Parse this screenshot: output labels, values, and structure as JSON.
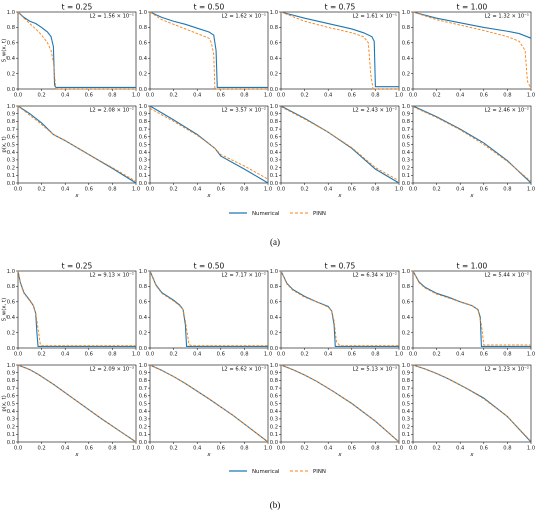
{
  "panel_labels": [
    "(a)",
    "(b)"
  ],
  "legend": {
    "numerical": "Numerical",
    "pinn": "PINN"
  },
  "colors": {
    "numerical": "#1f77b4",
    "pinn": "#ff7f0e"
  },
  "row_ylabels": {
    "saturation": "S_w(x, t)",
    "pressure": "p(x, t)"
  },
  "xlabel": "x",
  "chart_data": [
    {
      "panel": "(a)",
      "row": "saturation",
      "type": "line",
      "times": [
        "t = 0.25",
        "t = 0.50",
        "t = 0.75",
        "t = 1.00"
      ],
      "l2": [
        "L2 = 1.56 × 10⁻¹",
        "L2 = 1.62 × 10⁻¹",
        "L2 = 1.61 × 10⁻¹",
        "L2 = 1.32 × 10⁻¹"
      ],
      "xlim": [
        0,
        1
      ],
      "ylim": [
        0,
        1
      ],
      "xticks": [
        "0.0",
        "0.2",
        "0.4",
        "0.6",
        "0.8",
        "1.0"
      ],
      "yticks": [
        "0.0",
        "0.2",
        "0.4",
        "0.6",
        "0.8",
        "1.0"
      ],
      "series": [
        [
          {
            "name": "Numerical",
            "x": [
              0,
              0.05,
              0.1,
              0.15,
              0.2,
              0.25,
              0.28,
              0.3,
              0.31,
              0.32,
              1.0
            ],
            "y": [
              1.0,
              0.93,
              0.88,
              0.85,
              0.8,
              0.74,
              0.68,
              0.55,
              0.05,
              0.02,
              0.02
            ]
          },
          {
            "name": "PINN",
            "x": [
              0,
              0.05,
              0.1,
              0.15,
              0.2,
              0.25,
              0.28,
              0.3,
              0.32,
              1.0
            ],
            "y": [
              1.0,
              0.92,
              0.85,
              0.78,
              0.7,
              0.6,
              0.5,
              0.35,
              0.0,
              0.0
            ]
          }
        ],
        [
          {
            "name": "Numerical",
            "x": [
              0,
              0.1,
              0.2,
              0.3,
              0.4,
              0.5,
              0.54,
              0.56,
              0.57,
              1.0
            ],
            "y": [
              1.0,
              0.93,
              0.88,
              0.84,
              0.79,
              0.74,
              0.7,
              0.5,
              0.02,
              0.02
            ]
          },
          {
            "name": "PINN",
            "x": [
              0,
              0.1,
              0.2,
              0.3,
              0.4,
              0.5,
              0.52,
              0.54,
              0.55,
              1.0
            ],
            "y": [
              1.0,
              0.9,
              0.84,
              0.78,
              0.72,
              0.66,
              0.6,
              0.45,
              0.0,
              0.0
            ]
          }
        ],
        [
          {
            "name": "Numerical",
            "x": [
              0,
              0.2,
              0.4,
              0.6,
              0.7,
              0.77,
              0.79,
              0.8,
              1.0
            ],
            "y": [
              1.0,
              0.92,
              0.85,
              0.78,
              0.73,
              0.68,
              0.62,
              0.03,
              0.03
            ]
          },
          {
            "name": "PINN",
            "x": [
              0,
              0.2,
              0.4,
              0.6,
              0.7,
              0.74,
              0.76,
              0.78,
              1.0
            ],
            "y": [
              1.0,
              0.88,
              0.8,
              0.73,
              0.68,
              0.6,
              0.2,
              0.0,
              0.0
            ]
          }
        ],
        [
          {
            "name": "Numerical",
            "x": [
              0,
              0.2,
              0.4,
              0.6,
              0.8,
              0.9,
              1.0
            ],
            "y": [
              1.0,
              0.92,
              0.86,
              0.8,
              0.75,
              0.72,
              0.66
            ]
          },
          {
            "name": "PINN",
            "x": [
              0,
              0.2,
              0.4,
              0.6,
              0.8,
              0.9,
              0.95,
              0.97,
              1.0
            ],
            "y": [
              1.0,
              0.9,
              0.83,
              0.76,
              0.68,
              0.62,
              0.5,
              0.1,
              0.0
            ]
          }
        ]
      ]
    },
    {
      "panel": "(a)",
      "row": "pressure",
      "type": "line",
      "l2": [
        "L2 = 2.08 × 10⁻²",
        "L2 = 3.57 × 10⁻²",
        "L2 = 2.43 × 10⁻²",
        "L2 = 2.46 × 10⁻²"
      ],
      "xlim": [
        0,
        1
      ],
      "ylim": [
        0,
        1
      ],
      "xticks": [
        "0.0",
        "0.2",
        "0.4",
        "0.6",
        "0.8",
        "1.0"
      ],
      "yticks": [
        "0.0",
        "0.1",
        "0.2",
        "0.3",
        "0.4",
        "0.5",
        "0.6",
        "0.7",
        "0.8",
        "0.9",
        "1.0"
      ],
      "series": [
        [
          {
            "name": "Numerical",
            "x": [
              0,
              0.1,
              0.2,
              0.3,
              0.4,
              0.6,
              0.8,
              1.0
            ],
            "y": [
              1.0,
              0.9,
              0.78,
              0.63,
              0.55,
              0.37,
              0.19,
              0.0
            ]
          },
          {
            "name": "PINN",
            "x": [
              0,
              0.1,
              0.2,
              0.3,
              0.4,
              0.6,
              0.8,
              1.0
            ],
            "y": [
              1.0,
              0.88,
              0.76,
              0.63,
              0.55,
              0.37,
              0.2,
              0.02
            ]
          }
        ],
        [
          {
            "name": "Numerical",
            "x": [
              0,
              0.2,
              0.4,
              0.55,
              0.6,
              0.8,
              1.0
            ],
            "y": [
              1.0,
              0.82,
              0.63,
              0.45,
              0.35,
              0.18,
              0.0
            ]
          },
          {
            "name": "PINN",
            "x": [
              0,
              0.2,
              0.4,
              0.55,
              0.6,
              0.8,
              1.0
            ],
            "y": [
              0.97,
              0.8,
              0.62,
              0.45,
              0.37,
              0.22,
              0.05
            ]
          }
        ],
        [
          {
            "name": "Numerical",
            "x": [
              0,
              0.2,
              0.4,
              0.6,
              0.8,
              1.0
            ],
            "y": [
              1.0,
              0.84,
              0.66,
              0.45,
              0.18,
              0.0
            ]
          },
          {
            "name": "PINN",
            "x": [
              0,
              0.2,
              0.4,
              0.6,
              0.8,
              1.0
            ],
            "y": [
              0.99,
              0.83,
              0.66,
              0.46,
              0.2,
              0.03
            ]
          }
        ],
        [
          {
            "name": "Numerical",
            "x": [
              0,
              0.2,
              0.4,
              0.6,
              0.8,
              1.0
            ],
            "y": [
              1.0,
              0.86,
              0.7,
              0.52,
              0.29,
              0.0
            ]
          },
          {
            "name": "PINN",
            "x": [
              0,
              0.2,
              0.4,
              0.6,
              0.8,
              1.0
            ],
            "y": [
              0.99,
              0.85,
              0.69,
              0.5,
              0.28,
              0.02
            ]
          }
        ]
      ]
    },
    {
      "panel": "(b)",
      "row": "saturation",
      "type": "line",
      "times": [
        "t = 0.25",
        "t = 0.50",
        "t = 0.75",
        "t = 1.00"
      ],
      "l2": [
        "L2 = 9.13 × 10⁻²",
        "L2 = 7.17 × 10⁻²",
        "L2 = 6.34 × 10⁻²",
        "L2 = 5.44 × 10⁻²"
      ],
      "xlim": [
        0,
        1
      ],
      "ylim": [
        0,
        1
      ],
      "xticks": [
        "0.0",
        "0.2",
        "0.4",
        "0.6",
        "0.8",
        "1.0"
      ],
      "yticks": [
        "0.0",
        "0.2",
        "0.4",
        "0.6",
        "0.8",
        "1.0"
      ],
      "series": [
        [
          {
            "name": "Numerical",
            "x": [
              0,
              0.02,
              0.05,
              0.1,
              0.13,
              0.15,
              0.16,
              0.17,
              1.0
            ],
            "y": [
              1.0,
              0.85,
              0.72,
              0.62,
              0.55,
              0.45,
              0.2,
              0.02,
              0.02
            ]
          },
          {
            "name": "PINN",
            "x": [
              0,
              0.02,
              0.05,
              0.1,
              0.13,
              0.15,
              0.17,
              0.19,
              0.2,
              1.0
            ],
            "y": [
              1.0,
              0.84,
              0.71,
              0.61,
              0.55,
              0.46,
              0.25,
              0.04,
              0.03,
              0.03
            ]
          }
        ],
        [
          {
            "name": "Numerical",
            "x": [
              0,
              0.05,
              0.1,
              0.2,
              0.25,
              0.28,
              0.3,
              0.31,
              1.0
            ],
            "y": [
              1.0,
              0.82,
              0.72,
              0.62,
              0.56,
              0.5,
              0.3,
              0.02,
              0.02
            ]
          },
          {
            "name": "PINN",
            "x": [
              0,
              0.05,
              0.1,
              0.2,
              0.25,
              0.28,
              0.3,
              0.33,
              0.35,
              1.0
            ],
            "y": [
              1.0,
              0.81,
              0.71,
              0.61,
              0.55,
              0.5,
              0.35,
              0.05,
              0.03,
              0.03
            ]
          }
        ],
        [
          {
            "name": "Numerical",
            "x": [
              0,
              0.05,
              0.1,
              0.2,
              0.3,
              0.4,
              0.43,
              0.45,
              0.46,
              1.0
            ],
            "y": [
              1.0,
              0.84,
              0.76,
              0.67,
              0.6,
              0.54,
              0.48,
              0.3,
              0.02,
              0.02
            ]
          },
          {
            "name": "PINN",
            "x": [
              0,
              0.05,
              0.1,
              0.2,
              0.3,
              0.4,
              0.43,
              0.45,
              0.47,
              0.5,
              1.0
            ],
            "y": [
              1.0,
              0.83,
              0.75,
              0.66,
              0.6,
              0.53,
              0.48,
              0.35,
              0.08,
              0.03,
              0.03
            ]
          }
        ],
        [
          {
            "name": "Numerical",
            "x": [
              0,
              0.05,
              0.1,
              0.2,
              0.3,
              0.4,
              0.5,
              0.55,
              0.57,
              0.58,
              1.0
            ],
            "y": [
              1.0,
              0.86,
              0.79,
              0.71,
              0.66,
              0.6,
              0.55,
              0.5,
              0.4,
              0.02,
              0.02
            ]
          },
          {
            "name": "PINN",
            "x": [
              0,
              0.05,
              0.1,
              0.2,
              0.3,
              0.4,
              0.5,
              0.55,
              0.58,
              0.6,
              1.0
            ],
            "y": [
              1.0,
              0.85,
              0.78,
              0.7,
              0.65,
              0.6,
              0.55,
              0.5,
              0.3,
              0.04,
              0.04
            ]
          }
        ]
      ]
    },
    {
      "panel": "(b)",
      "row": "pressure",
      "type": "line",
      "l2": [
        "L2 = 2.09 × 10⁻³",
        "L2 = 6.62 × 10⁻³",
        "L2 = 5.13 × 10⁻³",
        "L2 = 1.23 × 10⁻²"
      ],
      "xlim": [
        0,
        1
      ],
      "ylim": [
        0,
        1
      ],
      "xticks": [
        "0.0",
        "0.2",
        "0.4",
        "0.6",
        "0.8",
        "1.0"
      ],
      "yticks": [
        "0.0",
        "0.1",
        "0.2",
        "0.3",
        "0.4",
        "0.5",
        "0.6",
        "0.7",
        "0.8",
        "0.9",
        "1.0"
      ],
      "series": [
        [
          {
            "name": "Numerical",
            "x": [
              0,
              0.1,
              0.17,
              0.3,
              0.5,
              0.7,
              1.0
            ],
            "y": [
              1.0,
              0.94,
              0.88,
              0.75,
              0.53,
              0.31,
              0.0
            ]
          },
          {
            "name": "PINN",
            "x": [
              0,
              0.1,
              0.17,
              0.3,
              0.5,
              0.7,
              1.0
            ],
            "y": [
              1.0,
              0.94,
              0.88,
              0.75,
              0.53,
              0.31,
              0.0
            ]
          }
        ],
        [
          {
            "name": "Numerical",
            "x": [
              0,
              0.1,
              0.2,
              0.3,
              0.5,
              0.7,
              1.0
            ],
            "y": [
              1.0,
              0.93,
              0.85,
              0.76,
              0.56,
              0.35,
              0.0
            ]
          },
          {
            "name": "PINN",
            "x": [
              0,
              0.1,
              0.2,
              0.3,
              0.5,
              0.7,
              1.0
            ],
            "y": [
              1.0,
              0.93,
              0.85,
              0.76,
              0.56,
              0.35,
              0.0
            ]
          }
        ],
        [
          {
            "name": "Numerical",
            "x": [
              0,
              0.1,
              0.2,
              0.3,
              0.45,
              0.6,
              0.8,
              1.0
            ],
            "y": [
              1.0,
              0.94,
              0.87,
              0.79,
              0.65,
              0.5,
              0.27,
              0.0
            ]
          },
          {
            "name": "PINN",
            "x": [
              0,
              0.1,
              0.2,
              0.3,
              0.45,
              0.6,
              0.8,
              1.0
            ],
            "y": [
              1.0,
              0.94,
              0.87,
              0.79,
              0.65,
              0.5,
              0.27,
              0.0
            ]
          }
        ],
        [
          {
            "name": "Numerical",
            "x": [
              0,
              0.1,
              0.2,
              0.3,
              0.45,
              0.6,
              0.8,
              1.0
            ],
            "y": [
              1.0,
              0.95,
              0.89,
              0.82,
              0.7,
              0.57,
              0.33,
              0.0
            ]
          },
          {
            "name": "PINN",
            "x": [
              0,
              0.1,
              0.2,
              0.3,
              0.45,
              0.6,
              0.8,
              1.0
            ],
            "y": [
              1.0,
              0.95,
              0.89,
              0.82,
              0.7,
              0.56,
              0.33,
              0.01
            ]
          }
        ]
      ]
    }
  ]
}
